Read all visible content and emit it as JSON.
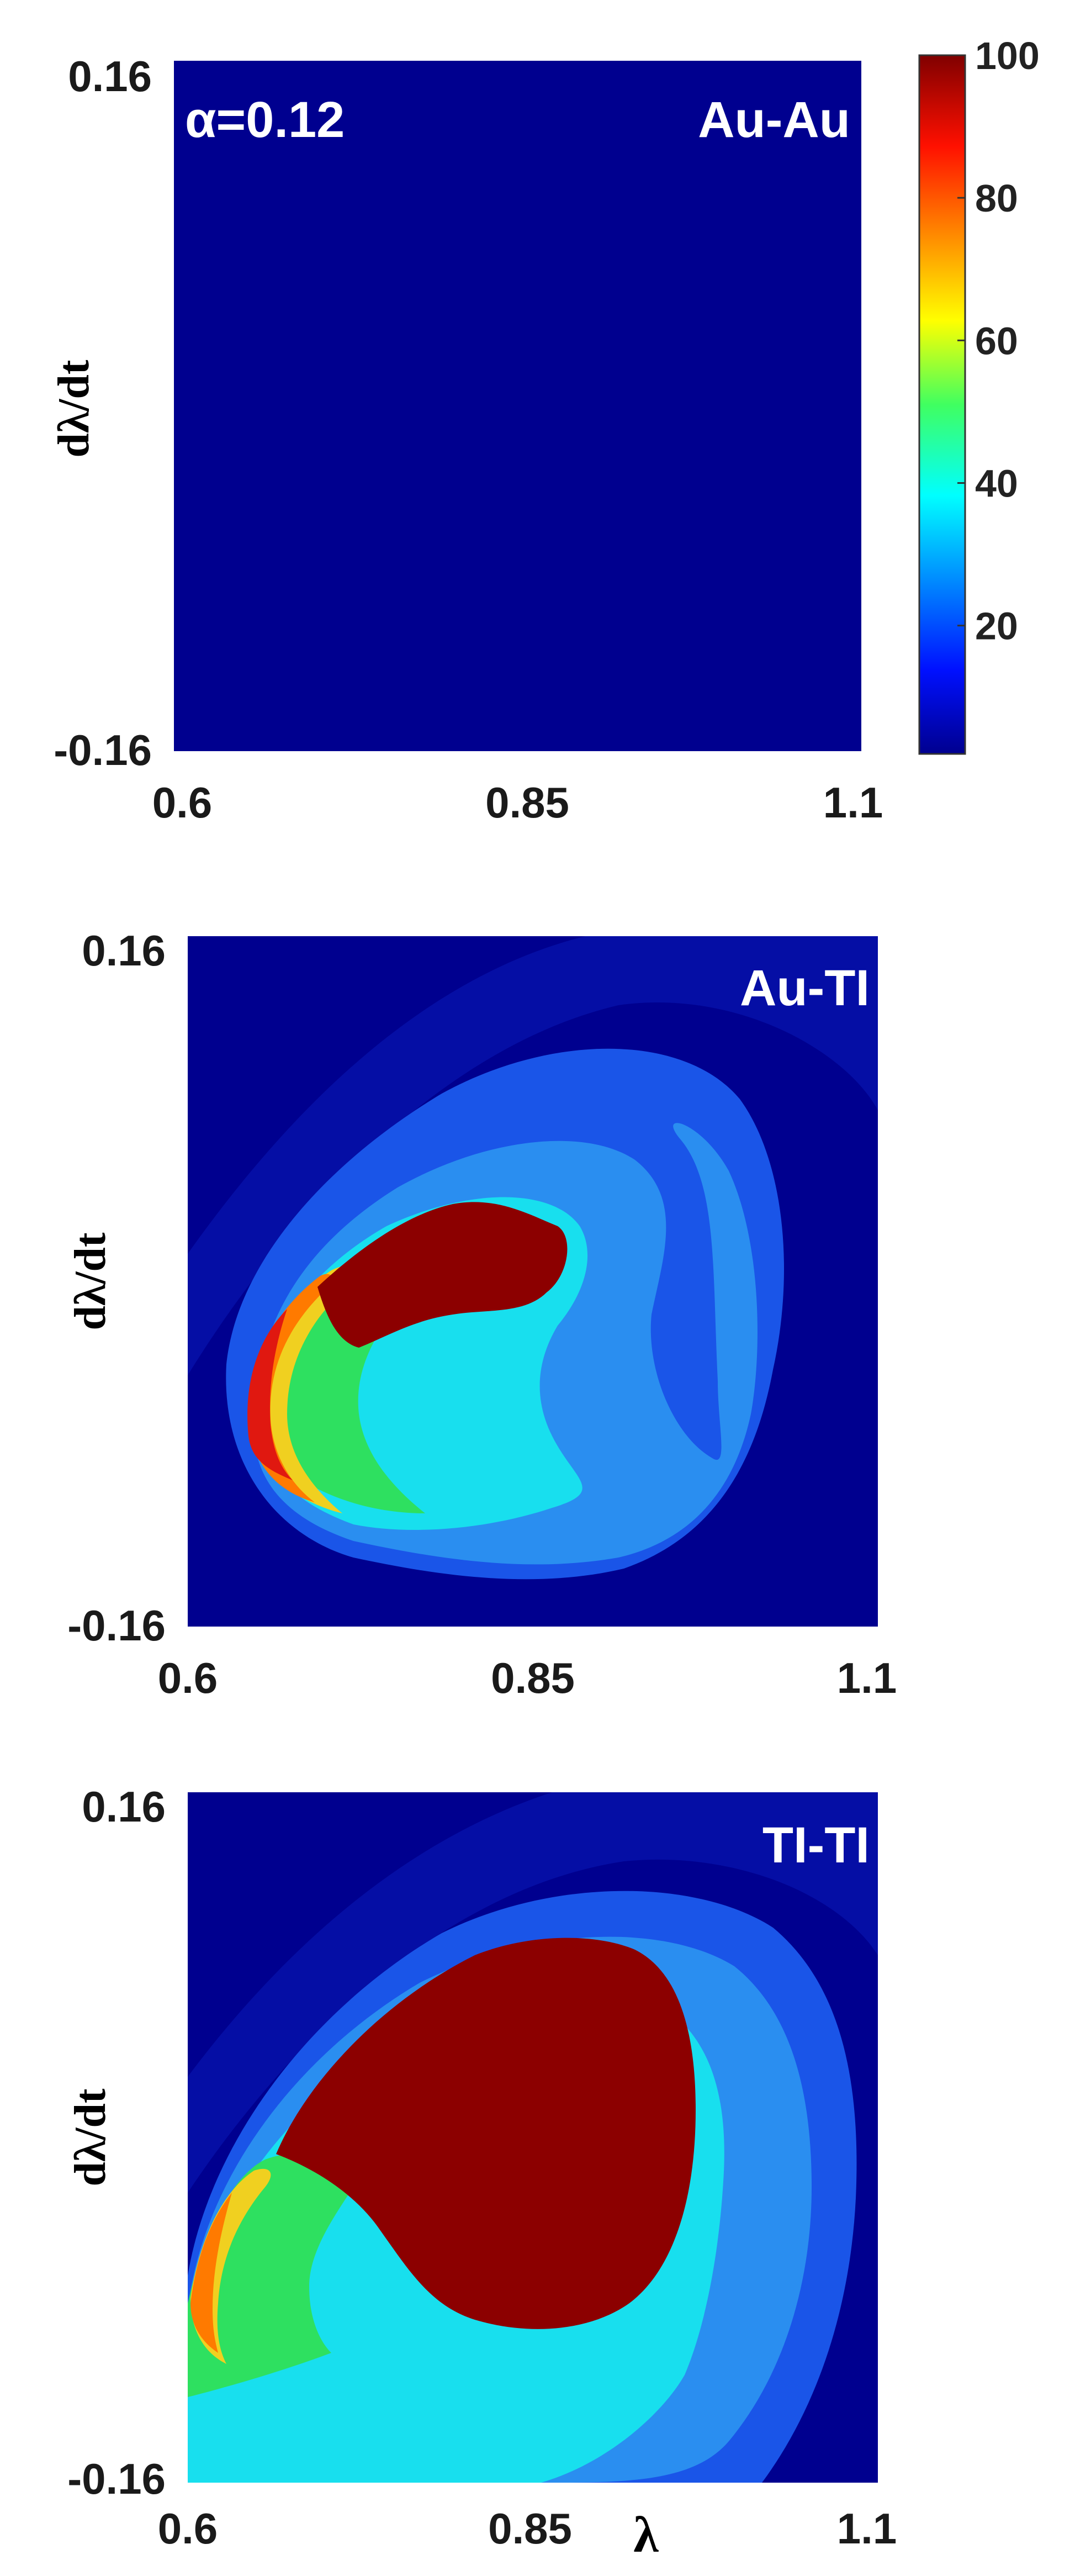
{
  "chart_data": [
    {
      "type": "heatmap",
      "panel_label": "Au-Au",
      "annotation": "α=0.12",
      "ylabel": "dλ/dt",
      "xlabel": "",
      "x_ticks": [
        "0.6",
        "0.85",
        "1.1"
      ],
      "y_ticks": [
        "0.16",
        "-0.16"
      ],
      "xlim": [
        0.6,
        1.1
      ],
      "ylim": [
        -0.16,
        0.16
      ],
      "description_values": {
        "background": 2
      }
    },
    {
      "type": "heatmap",
      "panel_label": "Au-TI",
      "ylabel": "dλ/dt",
      "xlabel": "",
      "x_ticks": [
        "0.6",
        "0.85",
        "1.1"
      ],
      "y_ticks": [
        "0.16",
        "-0.16"
      ],
      "xlim": [
        0.6,
        1.1
      ],
      "ylim": [
        -0.16,
        0.16
      ]
    },
    {
      "type": "heatmap",
      "panel_label": "TI-TI",
      "ylabel": "dλ/dt",
      "xlabel": "λ",
      "x_ticks": [
        "0.6",
        "0.85",
        "1.1"
      ],
      "y_ticks": [
        "0.16",
        "-0.16"
      ],
      "xlim": [
        0.6,
        1.1
      ],
      "ylim": [
        -0.16,
        0.16
      ]
    }
  ],
  "colorbar": {
    "range": [
      2,
      100
    ],
    "ticks": [
      "100",
      "80",
      "60",
      "40",
      "20"
    ],
    "tick_values": [
      100,
      80,
      60,
      40,
      20
    ],
    "colormap": "jet"
  },
  "colors": {
    "deep_blue": "#00008f",
    "blue": "#1740e0",
    "mid_blue": "#2b8ef0",
    "light_blue": "#2ebdf2",
    "cyan": "#19e6f0",
    "green": "#2fe060",
    "yellow": "#e8e020",
    "orange": "#ff8a00",
    "red": "#ef1a10",
    "dark_red": "#8c0000"
  }
}
